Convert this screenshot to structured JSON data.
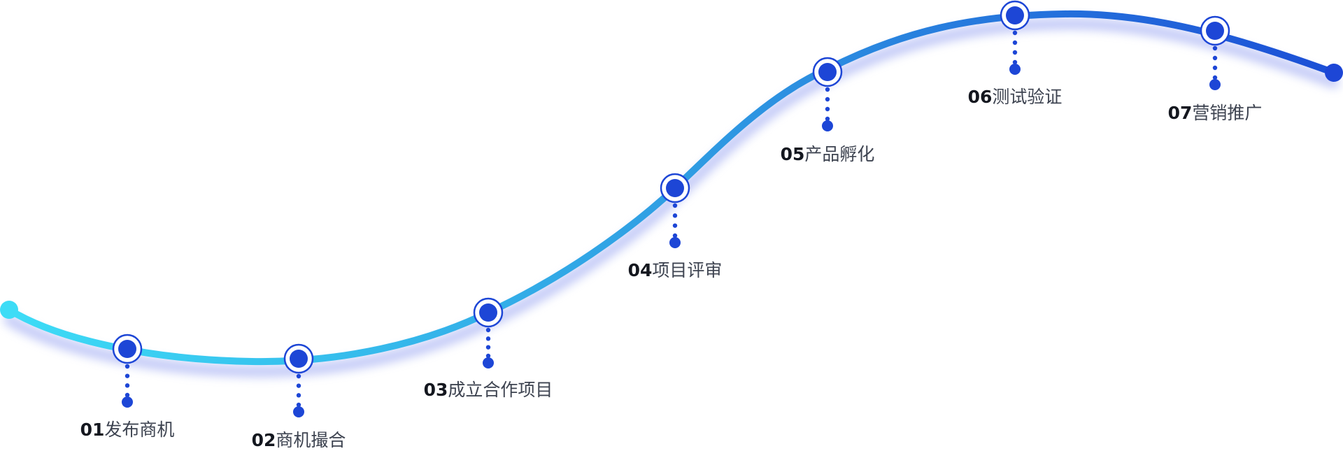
{
  "colors": {
    "line_start": "#3ddcf6",
    "line_mid": "#2f9ee3",
    "line_end": "#1c4fd6",
    "node": "#1d46d6",
    "glow": "#8f9cf0"
  },
  "steps": [
    {
      "number": "01",
      "name": "发布商机"
    },
    {
      "number": "02",
      "name": "商机撮合"
    },
    {
      "number": "03",
      "name": "成立合作项目"
    },
    {
      "number": "04",
      "name": "项目评审"
    },
    {
      "number": "05",
      "name": "产品孵化"
    },
    {
      "number": "06",
      "name": "测试验证"
    },
    {
      "number": "07",
      "name": "营销推广"
    }
  ]
}
